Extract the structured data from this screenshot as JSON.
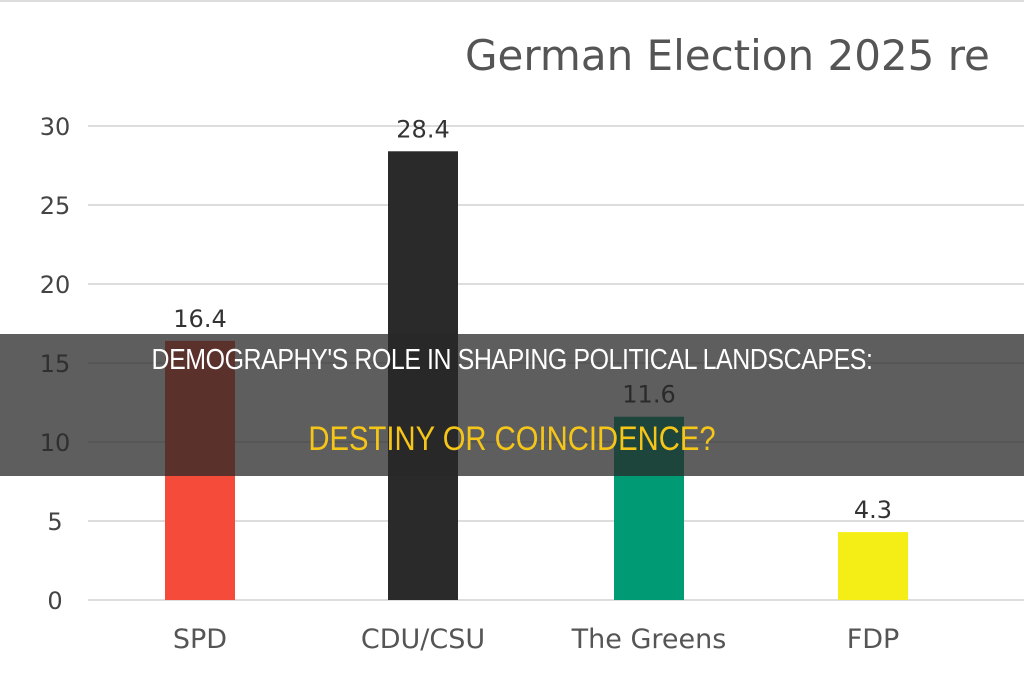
{
  "chart_data": {
    "type": "bar",
    "title": "German Election 2025 re",
    "categories": [
      "SPD",
      "CDU/CSU",
      "The Greens",
      "FDP"
    ],
    "values": [
      16.4,
      28.4,
      11.6,
      4.3
    ],
    "data_labels": [
      "16.4",
      "28.4",
      "11.6",
      "4.3"
    ],
    "colors": [
      "#f44b3b",
      "#2a2a2a",
      "#009a75",
      "#f5ee16"
    ],
    "yticks": [
      "0",
      "5",
      "10",
      "15",
      "20",
      "25",
      "30"
    ],
    "ylim": [
      0,
      30
    ],
    "grid": true,
    "xlabel": "",
    "ylabel": ""
  },
  "overlay": {
    "headline": "DEMOGRAPHY'S ROLE IN SHAPING POLITICAL LANDSCAPES:",
    "subheadline": "DESTINY OR COINCIDENCE?"
  }
}
